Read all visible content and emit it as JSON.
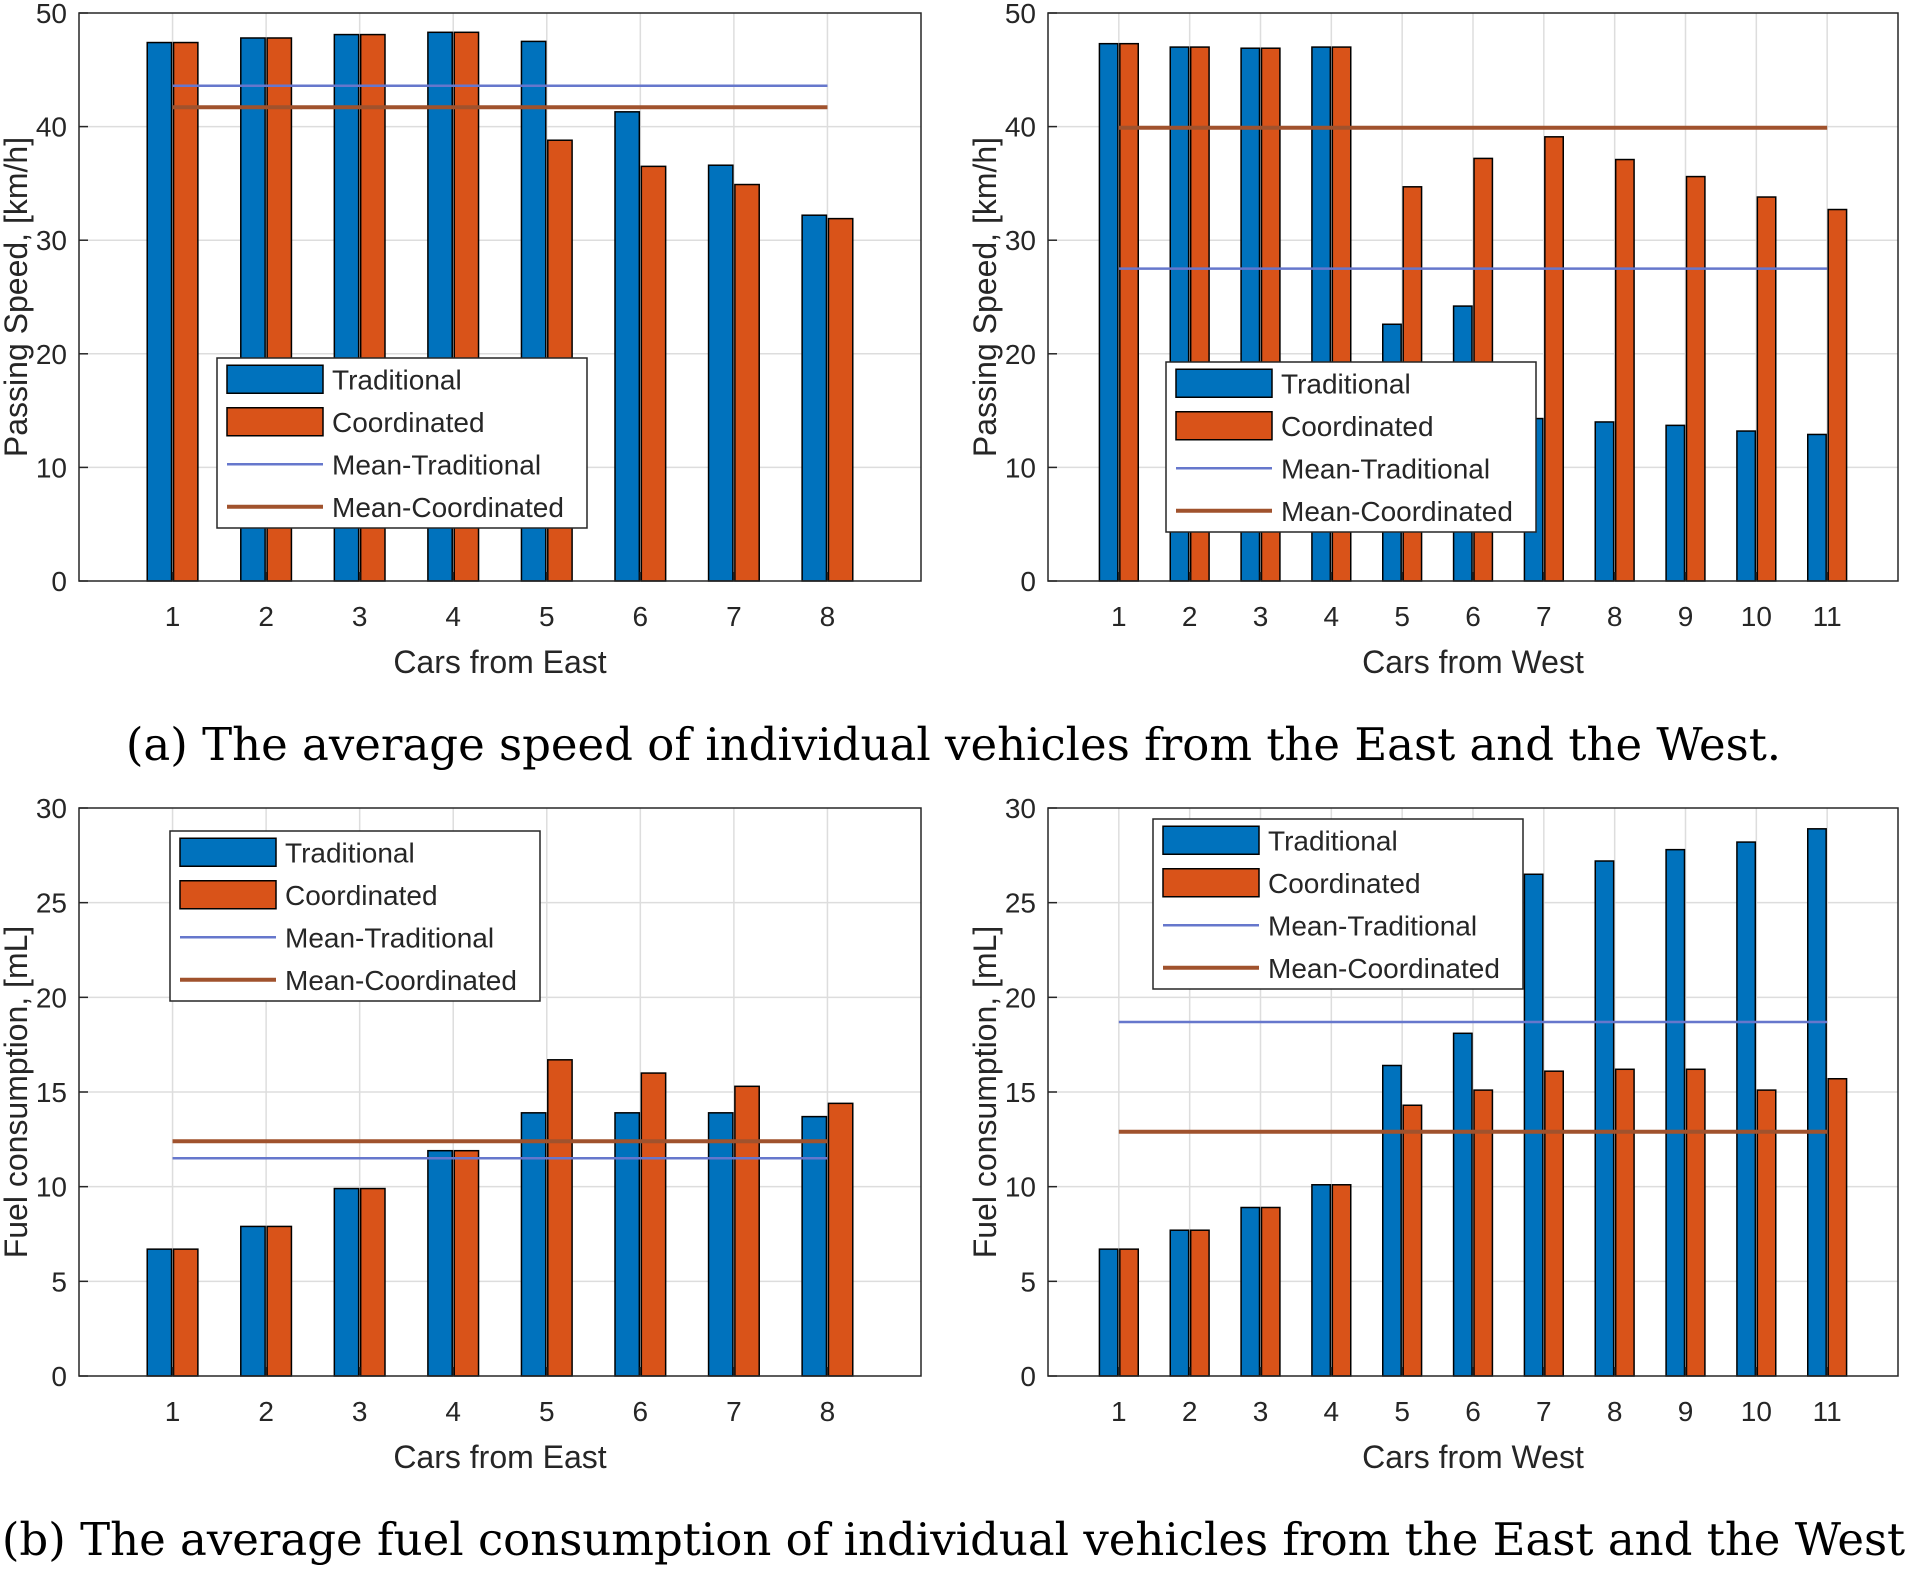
{
  "colors": {
    "traditional": "#0072BD",
    "coordinated": "#D95319",
    "mean_traditional": "#6677CC",
    "mean_coordinated": "#A0522D",
    "grid": "#DDDDDD",
    "axis": "#262626"
  },
  "captions": {
    "a": "(a) The average speed of individual vehicles from the East and the West.",
    "b": "(b) The average fuel consumption of individual vehicles from the East and the West"
  },
  "chart_data": [
    {
      "type": "bar",
      "xlabel": "Cars from East",
      "ylabel": "Passing Speed, [km/h]",
      "categories": [
        "1",
        "2",
        "3",
        "4",
        "5",
        "6",
        "7",
        "8"
      ],
      "ylim": [
        0,
        50
      ],
      "yticks": [
        "0",
        "10",
        "20",
        "30",
        "40",
        "50"
      ],
      "grid": true,
      "series": [
        {
          "name": "Traditional",
          "values": [
            47.4,
            47.8,
            48.1,
            48.3,
            47.5,
            41.3,
            36.6,
            32.2
          ]
        },
        {
          "name": "Coordinated",
          "values": [
            47.4,
            47.8,
            48.1,
            48.3,
            38.8,
            36.5,
            34.9,
            31.9
          ]
        }
      ],
      "means": [
        {
          "name": "Mean-Traditional",
          "value": 43.6
        },
        {
          "name": "Mean-Coordinated",
          "value": 41.7
        }
      ],
      "legend": {
        "position": "center-left"
      }
    },
    {
      "type": "bar",
      "xlabel": "Cars from West",
      "ylabel": "Passing Speed, [km/h]",
      "categories": [
        "1",
        "2",
        "3",
        "4",
        "5",
        "6",
        "7",
        "8",
        "9",
        "10",
        "11"
      ],
      "ylim": [
        0,
        50
      ],
      "yticks": [
        "0",
        "10",
        "20",
        "30",
        "40",
        "50"
      ],
      "grid": true,
      "series": [
        {
          "name": "Traditional",
          "values": [
            47.3,
            47.0,
            46.9,
            47.0,
            22.6,
            24.2,
            14.3,
            14.0,
            13.7,
            13.2,
            12.9
          ]
        },
        {
          "name": "Coordinated",
          "values": [
            47.3,
            47.0,
            46.9,
            47.0,
            34.7,
            37.2,
            39.1,
            37.1,
            35.6,
            33.8,
            32.7
          ]
        }
      ],
      "means": [
        {
          "name": "Mean-Traditional",
          "value": 27.5
        },
        {
          "name": "Mean-Coordinated",
          "value": 39.9
        }
      ],
      "legend": {
        "position": "center-left"
      }
    },
    {
      "type": "bar",
      "xlabel": "Cars from East",
      "ylabel": "Fuel consumption, [mL]",
      "categories": [
        "1",
        "2",
        "3",
        "4",
        "5",
        "6",
        "7",
        "8"
      ],
      "ylim": [
        0,
        30
      ],
      "yticks": [
        "0",
        "5",
        "10",
        "15",
        "20",
        "25",
        "30"
      ],
      "grid": true,
      "series": [
        {
          "name": "Traditional",
          "values": [
            6.7,
            7.9,
            9.9,
            11.9,
            13.9,
            13.9,
            13.9,
            13.7
          ]
        },
        {
          "name": "Coordinated",
          "values": [
            6.7,
            7.9,
            9.9,
            11.9,
            16.7,
            16.0,
            15.3,
            14.4
          ]
        }
      ],
      "means": [
        {
          "name": "Mean-Traditional",
          "value": 11.5
        },
        {
          "name": "Mean-Coordinated",
          "value": 12.4
        }
      ],
      "legend": {
        "position": "top-left"
      }
    },
    {
      "type": "bar",
      "xlabel": "Cars from West",
      "ylabel": "Fuel consumption, [mL]",
      "categories": [
        "1",
        "2",
        "3",
        "4",
        "5",
        "6",
        "7",
        "8",
        "9",
        "10",
        "11"
      ],
      "ylim": [
        0,
        30
      ],
      "yticks": [
        "0",
        "5",
        "10",
        "15",
        "20",
        "25",
        "30"
      ],
      "grid": true,
      "series": [
        {
          "name": "Traditional",
          "values": [
            6.7,
            7.7,
            8.9,
            10.1,
            16.4,
            18.1,
            26.5,
            27.2,
            27.8,
            28.2,
            28.9
          ]
        },
        {
          "name": "Coordinated",
          "values": [
            6.7,
            7.7,
            8.9,
            10.1,
            14.3,
            15.1,
            16.1,
            16.2,
            16.2,
            15.1,
            15.7
          ]
        }
      ],
      "means": [
        {
          "name": "Mean-Traditional",
          "value": 18.7
        },
        {
          "name": "Mean-Coordinated",
          "value": 12.9
        }
      ],
      "legend": {
        "position": "top-left"
      }
    }
  ]
}
